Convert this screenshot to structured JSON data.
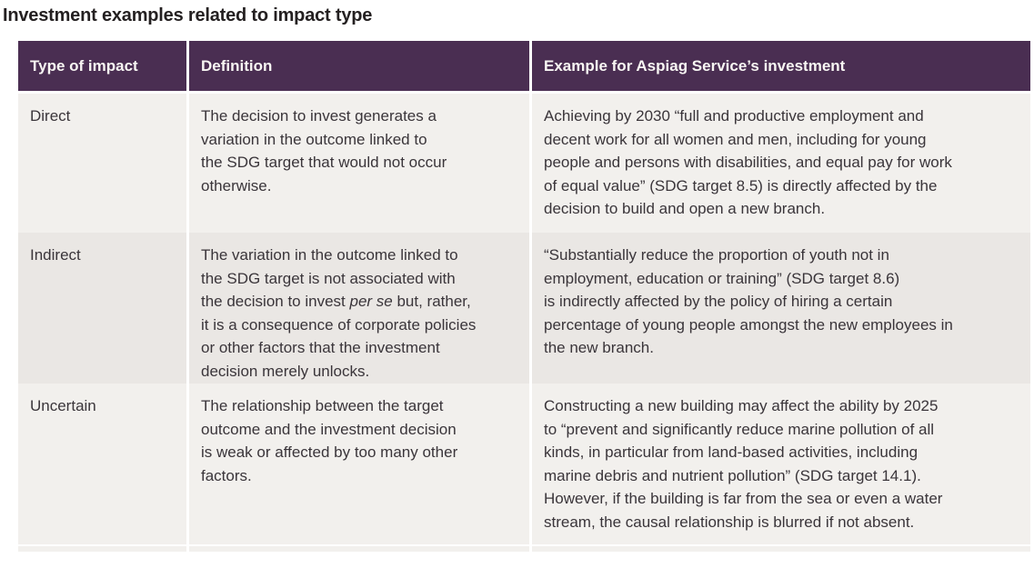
{
  "title": "Investment examples related to impact type",
  "colors": {
    "header_bg": "#4a2e52",
    "header_text": "#f8f6f3",
    "row_light": "#f2f0ed",
    "row_dark": "#eae7e4",
    "body_text": "#3a353a",
    "title_text": "#242021"
  },
  "table": {
    "columns": [
      "Type of impact",
      "Definition",
      "Example for Aspiag Service’s investment"
    ],
    "rows": [
      {
        "type": "Direct",
        "definition": "The decision to invest generates a\nvariation in the outcome linked to\nthe SDG target that would not occur\notherwise.",
        "example": "Achieving by 2030 “full and productive employment and\ndecent work for all women and men, including for young\npeople and persons with disabilities, and equal pay for work\nof equal value” (SDG target 8.5) is directly affected by the\ndecision to build and open a new branch."
      },
      {
        "type": "Indirect",
        "definition_before": "The variation in the outcome linked to\nthe SDG target is not associated with\nthe decision to invest ",
        "definition_italic": "per se",
        "definition_after": " but, rather,\nit is a consequence of corporate policies\nor other factors that the investment\ndecision merely unlocks.",
        "example": "“Substantially reduce the proportion of youth not in\nemployment, education or training” (SDG target 8.6)\nis indirectly affected by the policy of hiring a certain\npercentage of young people amongst the new employees in\nthe new branch."
      },
      {
        "type": "Uncertain",
        "definition": "The relationship between the target\noutcome and the investment decision\nis weak or affected by too many other\nfactors.",
        "example": "Constructing a new building may affect the ability by 2025\nto “prevent and significantly reduce marine pollution of all\nkinds, in particular from land-based activities, including\nmarine debris and nutrient pollution” (SDG target 14.1).\nHowever, if the building is far from the sea or even a water\nstream, the causal relationship is blurred if not absent."
      }
    ]
  }
}
